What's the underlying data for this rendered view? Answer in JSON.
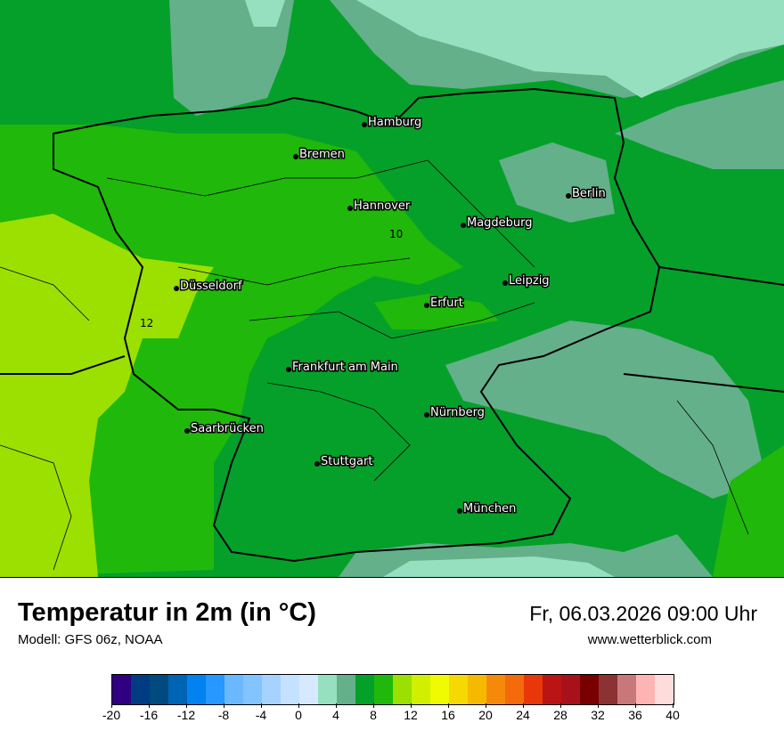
{
  "header": {
    "title": "Temperatur in 2m (in °C)",
    "model": "Modell: GFS 06z, NOAA",
    "datetime": "Fr, 06.03.2026 09:00 Uhr",
    "website": "www.wetterblick.com"
  },
  "map": {
    "cities": [
      "Hamburg",
      "Bremen",
      "Hannover",
      "Magdeburg",
      "Berlin",
      "Düsseldorf",
      "Leipzig",
      "Erfurt",
      "Frankfurt am Main",
      "Nürnberg",
      "Saarbrücken",
      "Stuttgart",
      "München"
    ],
    "contour_labels": [
      "10",
      "12"
    ]
  },
  "legend": {
    "min": -20,
    "max": 40,
    "step": 2,
    "tick_labels": [
      "-20",
      "-16",
      "-12",
      "-8",
      "-4",
      "0",
      "4",
      "8",
      "12",
      "16",
      "20",
      "24",
      "28",
      "32",
      "36",
      "40"
    ],
    "colors": [
      "#2f0080",
      "#003c82",
      "#004a80",
      "#0064b4",
      "#0082f0",
      "#2698ff",
      "#6ab8ff",
      "#82c4ff",
      "#a5d2ff",
      "#c4e1ff",
      "#d7e9ff",
      "#96e0c0",
      "#64b08a",
      "#05a02a",
      "#20b80a",
      "#9be000",
      "#d0f000",
      "#f0fa00",
      "#f5d900",
      "#f5b900",
      "#f58a0a",
      "#f56a0a",
      "#e8380a",
      "#bb1414",
      "#a8101a",
      "#780000",
      "#8c3232",
      "#c87878",
      "#ffb4b4",
      "#ffdcdc"
    ]
  }
}
